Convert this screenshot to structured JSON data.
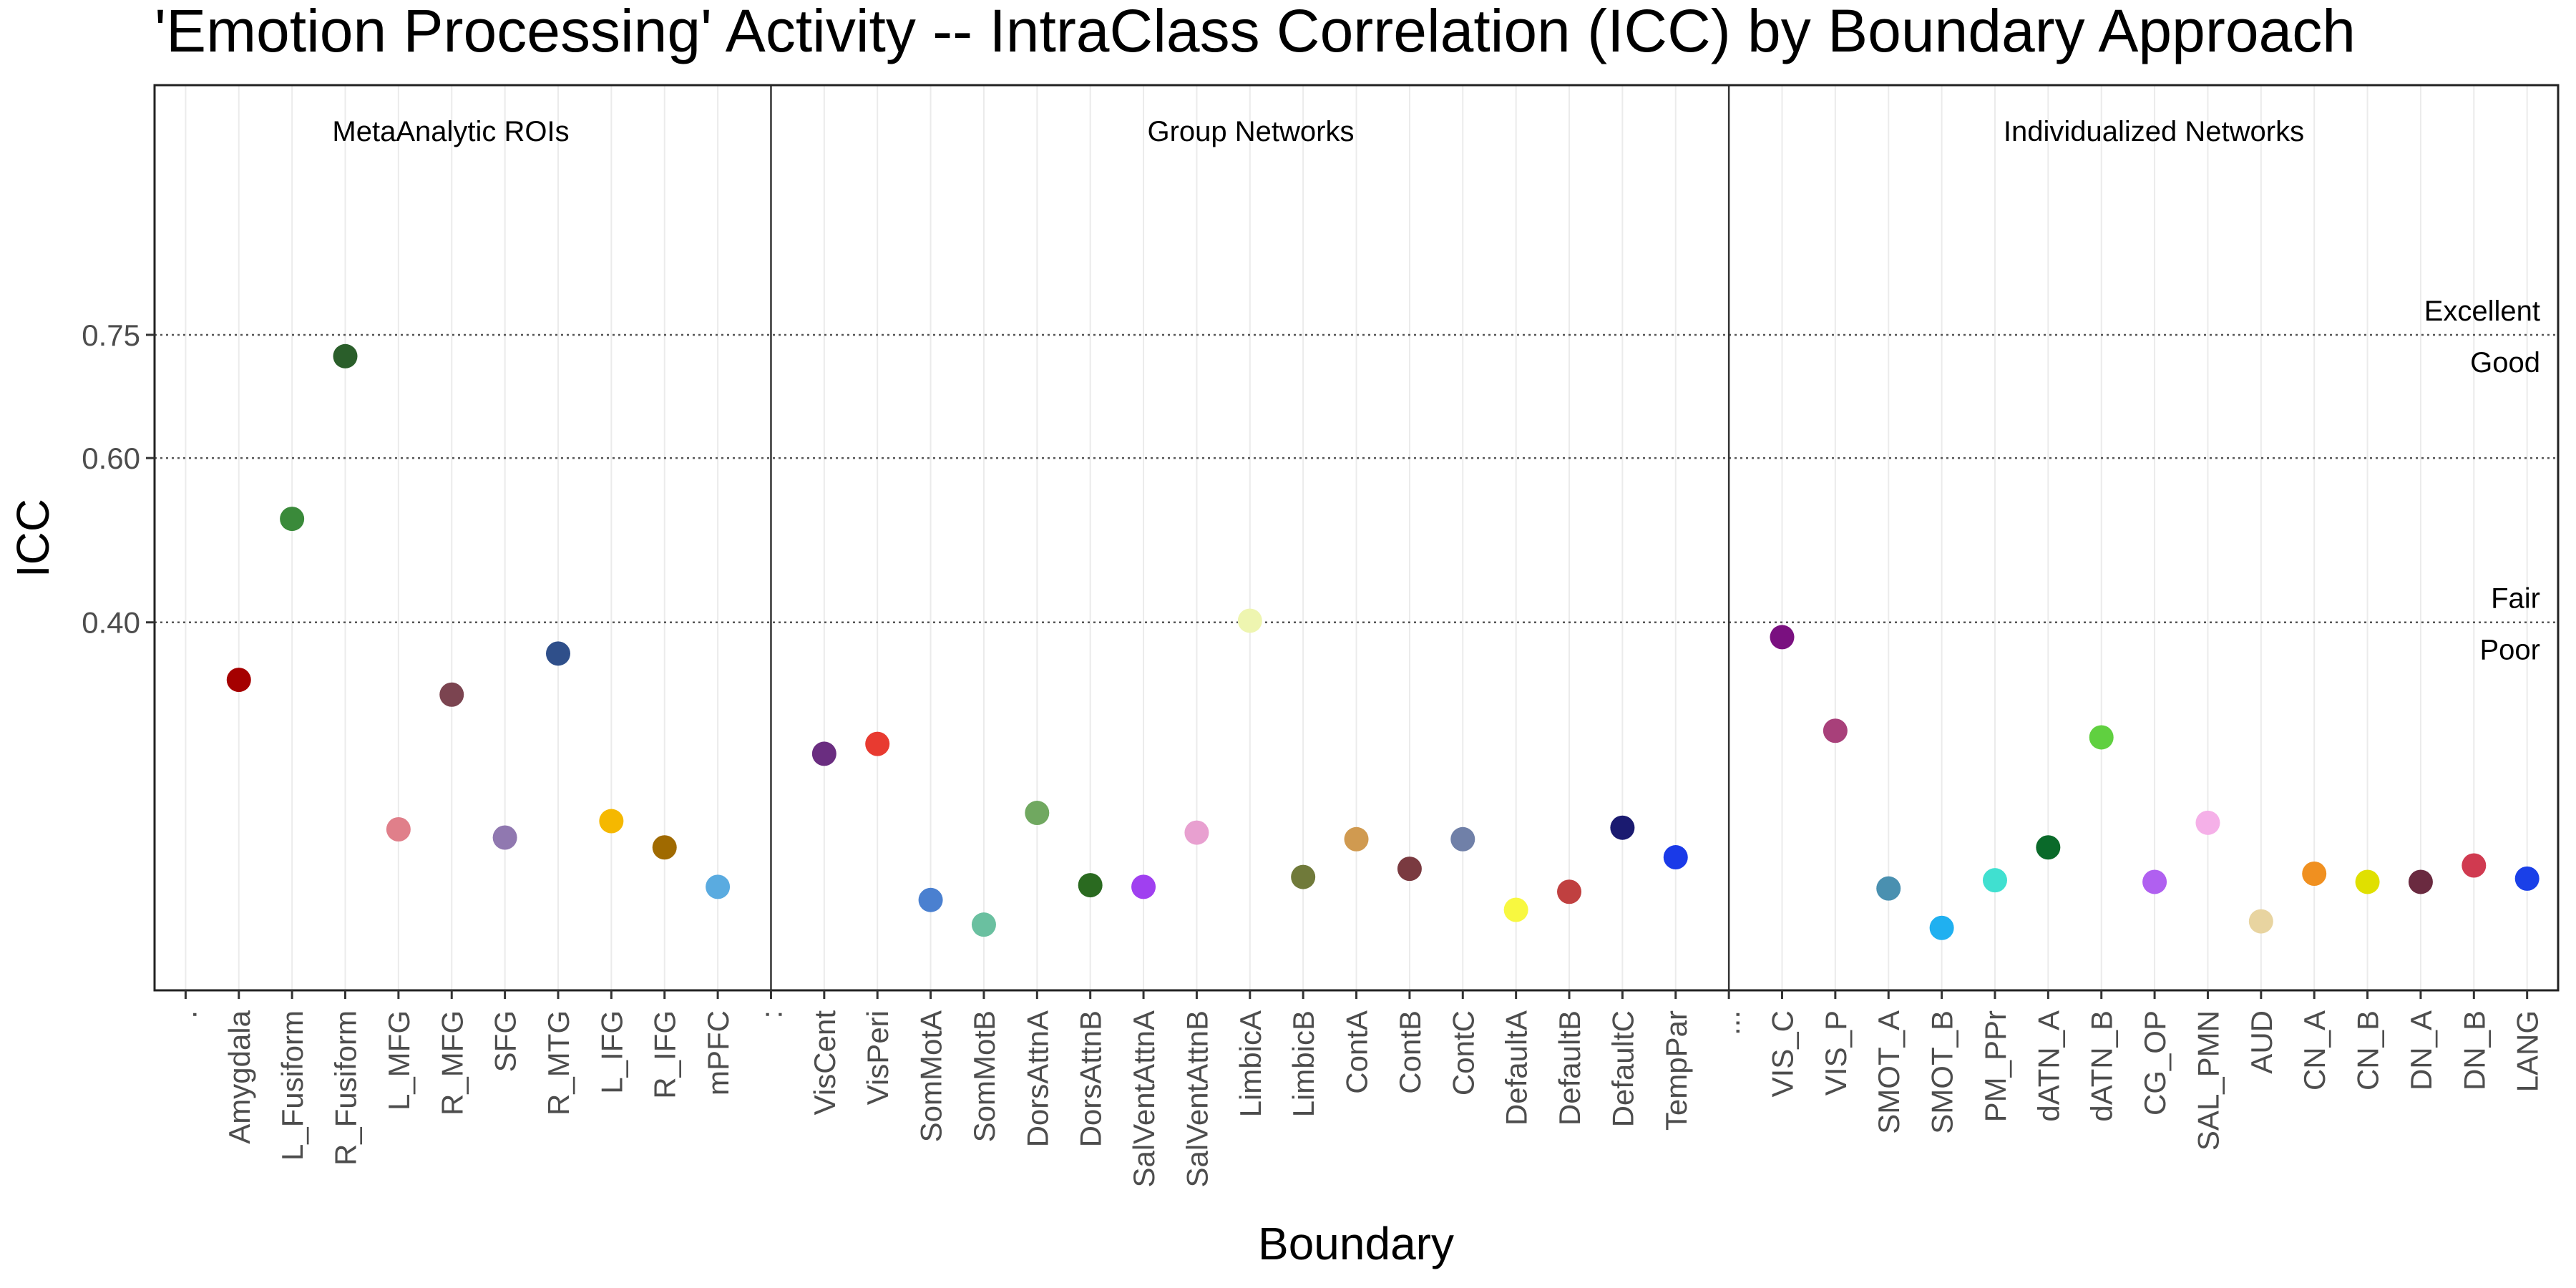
{
  "chart_data": {
    "type": "scatter",
    "title": "'Emotion Processing' Activity -- IntraClass Correlation (ICC) by Boundary Approach",
    "xlabel": "Boundary",
    "ylabel": "ICC",
    "ylim": [
      -0.048,
      1.054
    ],
    "yticks": [
      0.4,
      0.6,
      0.75
    ],
    "ytick_labels": [
      "0.40",
      "0.60",
      "0.75"
    ],
    "grid": true,
    "threshold_lines": [
      0.4,
      0.6,
      0.75
    ],
    "threshold_labels": [
      {
        "text": "Excellent",
        "y": 0.75,
        "pos": "above"
      },
      {
        "text": "Good",
        "y": 0.75,
        "pos": "below"
      },
      {
        "text": "Fair",
        "y": 0.4,
        "pos": "above"
      },
      {
        "text": "Poor",
        "y": 0.4,
        "pos": "below"
      }
    ],
    "groups": [
      {
        "name": "MetaAnalytic ROIs",
        "separator_label": ".",
        "points": [
          {
            "x": "Amygdala",
            "y": 0.33,
            "color": "#a50000"
          },
          {
            "x": "L_Fusiform",
            "y": 0.526,
            "color": "#3a8a3a"
          },
          {
            "x": "R_Fusiform",
            "y": 0.724,
            "color": "#2a5e2a"
          },
          {
            "x": "L_MFG",
            "y": 0.148,
            "color": "#e07f8a"
          },
          {
            "x": "R_MFG",
            "y": 0.312,
            "color": "#7b4450"
          },
          {
            "x": "SFG",
            "y": 0.138,
            "color": "#9078b0"
          },
          {
            "x": "R_MTG",
            "y": 0.362,
            "color": "#2f4f8a"
          },
          {
            "x": "L_IFG",
            "y": 0.158,
            "color": "#f5b800"
          },
          {
            "x": "R_IFG",
            "y": 0.126,
            "color": "#a06a00"
          },
          {
            "x": "mPFC",
            "y": 0.078,
            "color": "#5aabe0"
          }
        ]
      },
      {
        "name": "Group Networks",
        "separator_label": ":",
        "points": [
          {
            "x": "VisCent",
            "y": 0.24,
            "color": "#6a2d80"
          },
          {
            "x": "VisPeri",
            "y": 0.252,
            "color": "#e83a30"
          },
          {
            "x": "SomMotA",
            "y": 0.062,
            "color": "#4a80d0"
          },
          {
            "x": "SomMotB",
            "y": 0.032,
            "color": "#6ac0a0"
          },
          {
            "x": "DorsAttnA",
            "y": 0.168,
            "color": "#70a860"
          },
          {
            "x": "DorsAttnB",
            "y": 0.08,
            "color": "#2a6a20"
          },
          {
            "x": "SalVentAttnA",
            "y": 0.078,
            "color": "#a040f0"
          },
          {
            "x": "SalVentAttnB",
            "y": 0.144,
            "color": "#e8a0d0"
          },
          {
            "x": "LimbicA",
            "y": 0.402,
            "color": "#eef5b0"
          },
          {
            "x": "LimbicB",
            "y": 0.09,
            "color": "#707a3a"
          },
          {
            "x": "ContA",
            "y": 0.136,
            "color": "#d09a50"
          },
          {
            "x": "ContB",
            "y": 0.1,
            "color": "#7a3a40"
          },
          {
            "x": "ContC",
            "y": 0.136,
            "color": "#7080a8"
          },
          {
            "x": "DefaultA",
            "y": 0.05,
            "color": "#f8f840"
          },
          {
            "x": "DefaultB",
            "y": 0.072,
            "color": "#c04040"
          },
          {
            "x": "DefaultC",
            "y": 0.15,
            "color": "#1a1a70"
          },
          {
            "x": "TempPar",
            "y": 0.114,
            "color": "#1a3ae8"
          }
        ]
      },
      {
        "name": "Individualized Networks",
        "separator_label": "...",
        "points": [
          {
            "x": "VIS_C",
            "y": 0.382,
            "color": "#7a1080"
          },
          {
            "x": "VIS_P",
            "y": 0.268,
            "color": "#a8407a"
          },
          {
            "x": "SMOT_A",
            "y": 0.076,
            "color": "#4a90b0"
          },
          {
            "x": "SMOT_B",
            "y": 0.028,
            "color": "#20b0f0"
          },
          {
            "x": "PM_PPr",
            "y": 0.086,
            "color": "#40e0d0"
          },
          {
            "x": "dATN_A",
            "y": 0.126,
            "color": "#0a6a2a"
          },
          {
            "x": "dATN_B",
            "y": 0.26,
            "color": "#60d040"
          },
          {
            "x": "CG_OP",
            "y": 0.084,
            "color": "#b060f0"
          },
          {
            "x": "SAL_PMN",
            "y": 0.156,
            "color": "#f5b0e8"
          },
          {
            "x": "AUD",
            "y": 0.036,
            "color": "#e8d4a0"
          },
          {
            "x": "CN_A",
            "y": 0.094,
            "color": "#f09020"
          },
          {
            "x": "CN_B",
            "y": 0.084,
            "color": "#e0e000"
          },
          {
            "x": "DN_A",
            "y": 0.084,
            "color": "#6a2a40"
          },
          {
            "x": "DN_B",
            "y": 0.104,
            "color": "#d03a50"
          },
          {
            "x": "LANG",
            "y": 0.088,
            "color": "#1a40e8"
          }
        ]
      }
    ]
  }
}
